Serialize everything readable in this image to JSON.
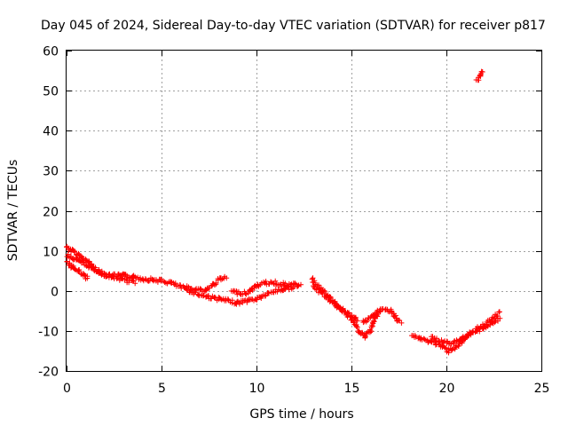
{
  "chart_data": {
    "type": "scatter",
    "title": "Day 045 of 2024, Sidereal Day-to-day VTEC variation (SDTVAR) for receiver p817",
    "xlabel": "GPS time / hours",
    "ylabel": "SDTVAR / TECUs",
    "xlim": [
      0,
      25
    ],
    "ylim": [
      -20,
      60
    ],
    "xticks": [
      0,
      5,
      10,
      15,
      20,
      25
    ],
    "yticks": [
      -20,
      -10,
      0,
      10,
      20,
      30,
      40,
      50,
      60
    ],
    "grid": true,
    "colors": {
      "series": "#ff0000",
      "grid": "#a0a0a0",
      "axis": "#000000"
    },
    "series": [
      {
        "name": "SDTVAR",
        "marker": "plus",
        "tracks": [
          [
            [
              0.0,
              11
            ],
            [
              0.3,
              10
            ],
            [
              0.6,
              9
            ],
            [
              0.9,
              8
            ],
            [
              1.2,
              7
            ],
            [
              1.5,
              5.5
            ],
            [
              1.8,
              4.5
            ],
            [
              2.1,
              4
            ],
            [
              2.5,
              3.8
            ],
            [
              3.0,
              3.8
            ],
            [
              3.5,
              3.5
            ],
            [
              4.0,
              3
            ],
            [
              4.5,
              2.8
            ],
            [
              5.0,
              2.5
            ],
            [
              5.5,
              2
            ],
            [
              6.0,
              1
            ],
            [
              6.5,
              0
            ],
            [
              7.0,
              -1
            ],
            [
              7.5,
              -1.5
            ],
            [
              8.0,
              -2
            ],
            [
              8.5,
              -2.5
            ],
            [
              9.0,
              -3
            ],
            [
              9.5,
              -2.5
            ],
            [
              10.0,
              -2
            ],
            [
              10.5,
              -1
            ],
            [
              11.0,
              0
            ],
            [
              11.5,
              0.5
            ],
            [
              12.0,
              1
            ]
          ],
          [
            [
              0.0,
              7
            ],
            [
              0.3,
              6
            ],
            [
              0.6,
              5
            ],
            [
              0.9,
              4
            ],
            [
              1.1,
              3
            ]
          ],
          [
            [
              0.0,
              9
            ],
            [
              0.4,
              8
            ],
            [
              0.8,
              7
            ],
            [
              1.2,
              6
            ],
            [
              1.6,
              5
            ],
            [
              2.0,
              4
            ],
            [
              2.4,
              3.5
            ],
            [
              2.8,
              3
            ]
          ],
          [
            [
              2.8,
              3
            ],
            [
              3.2,
              2.5
            ],
            [
              3.6,
              2
            ]
          ],
          [
            [
              6.3,
              1
            ],
            [
              6.8,
              0.5
            ],
            [
              7.3,
              0
            ],
            [
              7.7,
              1.5
            ],
            [
              8.1,
              3
            ],
            [
              8.4,
              3.2
            ]
          ],
          [
            [
              8.7,
              0
            ],
            [
              9.0,
              -0.5
            ],
            [
              9.4,
              -0.5
            ]
          ],
          [
            [
              9.5,
              -0.5
            ],
            [
              9.8,
              0.5
            ],
            [
              10.1,
              1.5
            ],
            [
              10.5,
              2
            ],
            [
              11.0,
              2
            ],
            [
              11.5,
              1.5
            ],
            [
              12.0,
              1.5
            ],
            [
              12.3,
              1.5
            ]
          ],
          [
            [
              12.9,
              3
            ],
            [
              13.3,
              1
            ],
            [
              13.7,
              -1
            ],
            [
              14.1,
              -3
            ],
            [
              14.5,
              -5
            ],
            [
              15.0,
              -7
            ],
            [
              15.4,
              -10
            ],
            [
              15.7,
              -11.5
            ],
            [
              16.0,
              -10
            ],
            [
              16.2,
              -7
            ],
            [
              16.5,
              -5
            ],
            [
              16.8,
              -4.5
            ],
            [
              17.1,
              -5
            ],
            [
              17.4,
              -7
            ],
            [
              17.6,
              -8
            ]
          ],
          [
            [
              13.0,
              1
            ],
            [
              13.4,
              -0.5
            ],
            [
              13.8,
              -2
            ],
            [
              14.3,
              -4
            ],
            [
              14.8,
              -5.5
            ],
            [
              15.3,
              -7.5
            ]
          ],
          [
            [
              15.6,
              -8
            ],
            [
              15.9,
              -7
            ],
            [
              16.2,
              -6
            ],
            [
              16.4,
              -5
            ]
          ],
          [
            [
              18.2,
              -11
            ],
            [
              18.6,
              -12
            ],
            [
              19.0,
              -12.5
            ],
            [
              19.4,
              -13
            ],
            [
              19.8,
              -14
            ],
            [
              20.1,
              -15
            ],
            [
              20.5,
              -14
            ],
            [
              20.8,
              -13
            ],
            [
              21.2,
              -11
            ],
            [
              21.6,
              -10
            ],
            [
              22.0,
              -9
            ],
            [
              22.4,
              -8
            ],
            [
              22.8,
              -7
            ]
          ],
          [
            [
              19.2,
              -11.5
            ],
            [
              19.6,
              -12.5
            ],
            [
              20.0,
              -13
            ],
            [
              20.4,
              -13
            ],
            [
              20.8,
              -12
            ],
            [
              21.2,
              -10.5
            ],
            [
              21.6,
              -9.5
            ],
            [
              22.0,
              -8.5
            ],
            [
              22.4,
              -7
            ],
            [
              22.8,
              -5.5
            ]
          ],
          [
            [
              21.6,
              52.5
            ],
            [
              21.75,
              53.5
            ],
            [
              21.9,
              55
            ]
          ]
        ]
      }
    ]
  }
}
